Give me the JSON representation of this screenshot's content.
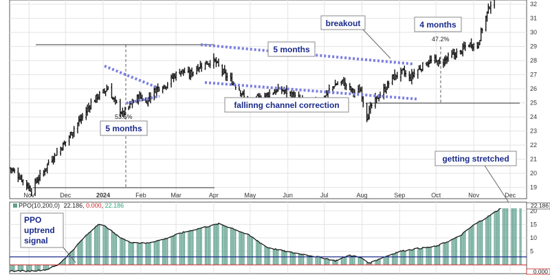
{
  "chart_data": [
    {
      "type": "bar",
      "subtype": "ohlc-price",
      "x_ticks": [
        "Nov",
        "Dec",
        "2024",
        "Feb",
        "Mar",
        "Apr",
        "May",
        "Jun",
        "Jul",
        "Aug",
        "Sep",
        "Oct",
        "Nov",
        "Dec"
      ],
      "y_ticks": [
        19,
        20,
        21,
        22,
        23,
        24,
        25,
        26,
        27,
        28,
        29,
        30,
        31,
        32
      ],
      "ylim": [
        18.3,
        32.2
      ],
      "grid": true,
      "close_path": [
        [
          "2023-10-16",
          20.4
        ],
        [
          "2023-10-20",
          20.1
        ],
        [
          "2023-10-25",
          19.7
        ],
        [
          "2023-10-31",
          19.1
        ],
        [
          "2023-11-03",
          18.8
        ],
        [
          "2023-11-08",
          19.6
        ],
        [
          "2023-11-13",
          20.1
        ],
        [
          "2023-11-17",
          20.8
        ],
        [
          "2023-11-22",
          21.3
        ],
        [
          "2023-11-28",
          21.9
        ],
        [
          "2023-12-04",
          22.6
        ],
        [
          "2023-12-08",
          23.2
        ],
        [
          "2023-12-13",
          23.8
        ],
        [
          "2023-12-18",
          24.4
        ],
        [
          "2023-12-22",
          25.0
        ],
        [
          "2023-12-28",
          25.5
        ],
        [
          "2024-01-03",
          25.9
        ],
        [
          "2024-01-05",
          26.1
        ],
        [
          "2024-01-09",
          25.3
        ],
        [
          "2024-01-12",
          24.9
        ],
        [
          "2024-01-17",
          24.2
        ],
        [
          "2024-01-22",
          24.7
        ],
        [
          "2024-01-26",
          25.1
        ],
        [
          "2024-01-31",
          25.5
        ],
        [
          "2024-02-05",
          25.0
        ],
        [
          "2024-02-09",
          25.6
        ],
        [
          "2024-02-15",
          26.1
        ],
        [
          "2024-02-22",
          26.3
        ],
        [
          "2024-02-28",
          26.9
        ],
        [
          "2024-03-05",
          27.3
        ],
        [
          "2024-03-12",
          27.0
        ],
        [
          "2024-03-18",
          27.5
        ],
        [
          "2024-03-25",
          27.8
        ],
        [
          "2024-04-01",
          28.0
        ],
        [
          "2024-04-05",
          27.6
        ],
        [
          "2024-04-10",
          27.0
        ],
        [
          "2024-04-16",
          26.5
        ],
        [
          "2024-04-22",
          26.0
        ],
        [
          "2024-04-26",
          25.4
        ],
        [
          "2024-05-01",
          24.9
        ],
        [
          "2024-05-07",
          25.3
        ],
        [
          "2024-05-13",
          25.5
        ],
        [
          "2024-05-20",
          25.8
        ],
        [
          "2024-05-28",
          25.9
        ],
        [
          "2024-06-04",
          25.6
        ],
        [
          "2024-06-10",
          25.2
        ],
        [
          "2024-06-17",
          24.9
        ],
        [
          "2024-06-24",
          25.1
        ],
        [
          "2024-07-01",
          25.3
        ],
        [
          "2024-07-05",
          25.9
        ],
        [
          "2024-07-10",
          26.3
        ],
        [
          "2024-07-16",
          26.5
        ],
        [
          "2024-07-22",
          26.0
        ],
        [
          "2024-07-26",
          25.7
        ],
        [
          "2024-07-31",
          25.9
        ],
        [
          "2024-08-05",
          24.0
        ],
        [
          "2024-08-09",
          24.8
        ],
        [
          "2024-08-14",
          25.4
        ],
        [
          "2024-08-20",
          26.0
        ],
        [
          "2024-08-26",
          26.8
        ],
        [
          "2024-08-30",
          27.0
        ],
        [
          "2024-09-04",
          27.2
        ],
        [
          "2024-09-09",
          26.7
        ],
        [
          "2024-09-13",
          27.1
        ],
        [
          "2024-09-18",
          27.5
        ],
        [
          "2024-09-24",
          27.9
        ],
        [
          "2024-09-30",
          28.0
        ],
        [
          "2024-10-04",
          27.8
        ],
        [
          "2024-10-09",
          28.1
        ],
        [
          "2024-10-15",
          28.4
        ],
        [
          "2024-10-21",
          28.6
        ],
        [
          "2024-10-25",
          29.0
        ],
        [
          "2024-10-30",
          29.2
        ],
        [
          "2024-11-04",
          29.0
        ],
        [
          "2024-11-07",
          30.0
        ],
        [
          "2024-11-11",
          31.1
        ],
        [
          "2024-11-14",
          31.9
        ],
        [
          "2024-11-18",
          32.4
        ]
      ],
      "annotations": {
        "time_labels": [
          "5 months",
          "5 months",
          "4 months"
        ],
        "pattern": "fallinng channel correction",
        "event": "breakout",
        "percent_labels": [
          "53.6%",
          "47.2%"
        ]
      }
    },
    {
      "type": "area",
      "indicator": "PPO",
      "legend_name": "PPO(10,200,0)",
      "legend_values": [
        "22.186",
        "0.000",
        "22.186"
      ],
      "current_value_label": "22.186",
      "zero_label": "0.000",
      "y_ticks": [
        5,
        10,
        15,
        20
      ],
      "ylim": [
        -3,
        22.5
      ],
      "path": [
        [
          "2023-10-16",
          -2.2
        ],
        [
          "2023-11-01",
          -2.3
        ],
        [
          "2023-11-15",
          -1.8
        ],
        [
          "2023-11-25",
          0
        ],
        [
          "2023-12-05",
          4.5
        ],
        [
          "2023-12-15",
          9.5
        ],
        [
          "2023-12-28",
          15.2
        ],
        [
          "2024-01-04",
          14.0
        ],
        [
          "2024-01-12",
          11.0
        ],
        [
          "2024-01-22",
          8.5
        ],
        [
          "2024-02-05",
          8.0
        ],
        [
          "2024-02-20",
          9.5
        ],
        [
          "2024-03-05",
          11.8
        ],
        [
          "2024-03-20",
          13.5
        ],
        [
          "2024-04-05",
          15.2
        ],
        [
          "2024-04-15",
          13.8
        ],
        [
          "2024-04-30",
          11.0
        ],
        [
          "2024-05-15",
          6.5
        ],
        [
          "2024-06-01",
          4.8
        ],
        [
          "2024-06-15",
          3.8
        ],
        [
          "2024-07-01",
          2.5
        ],
        [
          "2024-07-10",
          1.5
        ],
        [
          "2024-07-22",
          3.6
        ],
        [
          "2024-08-01",
          2.5
        ],
        [
          "2024-08-07",
          0.6
        ],
        [
          "2024-08-15",
          2.2
        ],
        [
          "2024-09-01",
          5.0
        ],
        [
          "2024-09-15",
          6.0
        ],
        [
          "2024-10-01",
          6.8
        ],
        [
          "2024-10-20",
          10.5
        ],
        [
          "2024-11-01",
          14.8
        ],
        [
          "2024-11-15",
          18.5
        ],
        [
          "2024-11-25",
          21.5
        ],
        [
          "2024-12-04",
          22.2
        ],
        [
          "2024-12-10",
          22.0
        ]
      ],
      "annotations": {
        "signal_label": "PPO\nuptrend\nsignal",
        "stretch_label": "getting stretched"
      }
    }
  ],
  "colors": {
    "price_bars": "#111111",
    "channel_lines": "#7b7fe0",
    "ppo_fill": "#5fa08d",
    "ppo_line": "#1a1a1a",
    "signal_line": "#1f2f8a",
    "annotation_text": "#1a2a8a",
    "grid": "#e3e3e3"
  }
}
